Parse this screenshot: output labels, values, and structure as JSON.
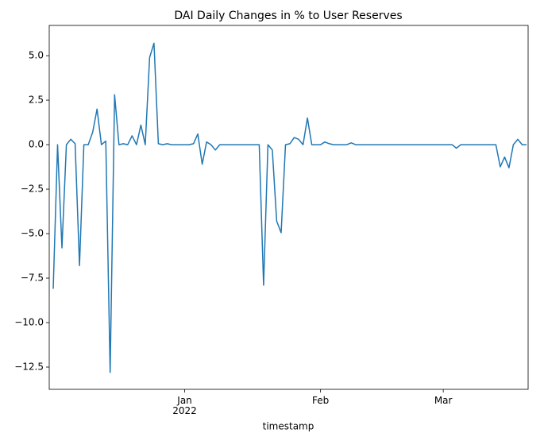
{
  "chart_data": {
    "type": "line",
    "title": "DAI Daily Changes in % to User Reserves",
    "x_label": "timestamp",
    "categories": [
      null,
      null,
      null,
      null,
      null,
      null,
      null,
      null,
      null,
      null,
      null,
      null,
      null,
      null,
      null,
      null,
      null,
      null,
      null,
      null,
      null,
      null,
      null,
      null,
      null,
      null,
      null,
      null,
      null,
      null,
      "Jan\n2022",
      null,
      null,
      null,
      null,
      null,
      null,
      null,
      null,
      null,
      null,
      null,
      null,
      null,
      null,
      null,
      null,
      null,
      null,
      null,
      null,
      null,
      null,
      null,
      null,
      null,
      null,
      null,
      null,
      null,
      null,
      "Feb",
      null,
      null,
      null,
      null,
      null,
      null,
      null,
      null,
      null,
      null,
      null,
      null,
      null,
      null,
      null,
      null,
      null,
      null,
      null,
      null,
      null,
      null,
      null,
      null,
      null,
      null,
      null,
      "Mar",
      null,
      null,
      null,
      null,
      null,
      null,
      null,
      null,
      null,
      null,
      null,
      null,
      null,
      null,
      null,
      null,
      null,
      null,
      null
    ],
    "series": [
      {
        "color": "#1f77b4",
        "values": [
          -8.1,
          0.0,
          -5.8,
          0.0,
          0.3,
          0.05,
          -6.8,
          0.0,
          0.0,
          0.7,
          2.0,
          0.0,
          0.2,
          -12.8,
          2.8,
          0.0,
          0.05,
          0.0,
          0.5,
          0.0,
          1.1,
          0.0,
          4.9,
          5.7,
          0.05,
          0.0,
          0.05,
          0.0,
          0.0,
          0.0,
          0.0,
          0.0,
          0.05,
          0.6,
          -1.1,
          0.15,
          0.0,
          -0.3,
          0.0,
          0.0,
          0.0,
          0.0,
          0.0,
          0.0,
          0.0,
          0.0,
          0.0,
          0.0,
          -7.9,
          0.0,
          -0.3,
          -4.3,
          -4.95,
          0.0,
          0.05,
          0.4,
          0.3,
          0.0,
          1.5,
          0.0,
          0.0,
          0.0,
          0.15,
          0.05,
          0.0,
          0.0,
          0.0,
          0.0,
          0.1,
          0.0,
          0.0,
          0.0,
          0.0,
          0.0,
          0.0,
          0.0,
          0.0,
          0.0,
          0.0,
          0.0,
          0.0,
          0.0,
          0.0,
          0.0,
          0.0,
          0.0,
          0.0,
          0.0,
          0.0,
          0.0,
          0.0,
          0.0,
          -0.2,
          0.0,
          0.0,
          0.0,
          0.0,
          0.0,
          0.0,
          0.0,
          0.0,
          0.0,
          -1.25,
          -0.7,
          -1.3,
          0.0,
          0.3,
          0.0,
          0.0
        ]
      }
    ],
    "ylim": [
      -13.75,
      6.7
    ],
    "yticks": [
      {
        "value": -12.5,
        "label": "−12.5"
      },
      {
        "value": -10,
        "label": "−10.0"
      },
      {
        "value": -7.5,
        "label": "−7.5"
      },
      {
        "value": -5,
        "label": "−5.0"
      },
      {
        "value": -2.5,
        "label": "−2.5"
      },
      {
        "value": 0,
        "label": "0.0"
      },
      {
        "value": 2.5,
        "label": "2.5"
      },
      {
        "value": 5,
        "label": "5.0"
      }
    ],
    "grid": false
  }
}
